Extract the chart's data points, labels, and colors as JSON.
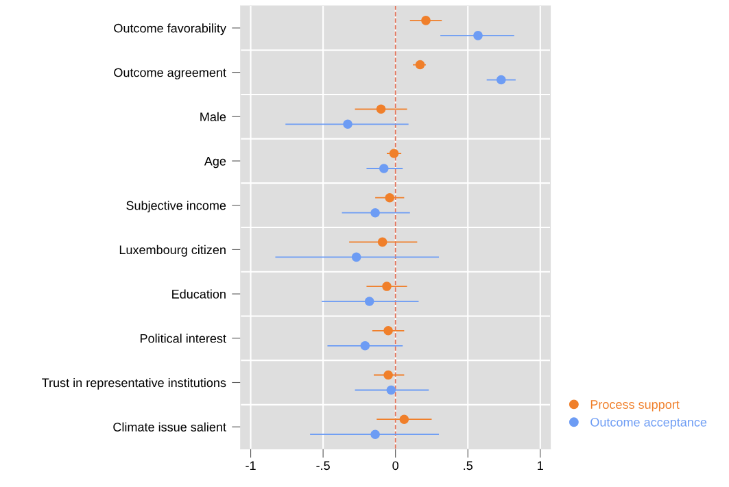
{
  "chart_data": {
    "type": "scatter",
    "orientation": "horizontal",
    "categories": [
      "Outcome favorability",
      "Outcome agreement",
      "Male",
      "Age",
      "Subjective income",
      "Luxembourg citizen",
      "Education",
      "Political interest",
      "Trust in representative institutions",
      "Climate issue salient"
    ],
    "series": [
      {
        "name": "Process support",
        "color": "#f07f2a",
        "values": [
          0.21,
          0.17,
          -0.1,
          -0.01,
          -0.04,
          -0.09,
          -0.06,
          -0.05,
          -0.05,
          0.06
        ],
        "errors": [
          [
            0.1,
            0.32
          ],
          [
            0.12,
            0.21
          ],
          [
            -0.28,
            0.08
          ],
          [
            -0.06,
            0.04
          ],
          [
            -0.14,
            0.06
          ],
          [
            -0.32,
            0.15
          ],
          [
            -0.2,
            0.08
          ],
          [
            -0.16,
            0.06
          ],
          [
            -0.15,
            0.06
          ],
          [
            -0.13,
            0.25
          ]
        ]
      },
      {
        "name": "Outcome acceptance",
        "color": "#6d9cf4",
        "values": [
          0.57,
          0.73,
          -0.33,
          -0.08,
          -0.14,
          -0.27,
          -0.18,
          -0.21,
          -0.03,
          -0.14
        ],
        "errors": [
          [
            0.31,
            0.82
          ],
          [
            0.63,
            0.83
          ],
          [
            -0.76,
            0.09
          ],
          [
            -0.2,
            0.05
          ],
          [
            -0.37,
            0.1
          ],
          [
            -0.83,
            0.3
          ],
          [
            -0.51,
            0.16
          ],
          [
            -0.47,
            0.05
          ],
          [
            -0.28,
            0.23
          ],
          [
            -0.59,
            0.3
          ]
        ]
      }
    ],
    "xlim": [
      -1.07,
      1.07
    ],
    "xticks": [
      {
        "value": -1,
        "label": "-1"
      },
      {
        "value": -0.5,
        "label": "-.5"
      },
      {
        "value": 0,
        "label": "0"
      },
      {
        "value": 0.5,
        "label": ".5"
      },
      {
        "value": 1,
        "label": "1"
      }
    ],
    "ref_lines": [
      {
        "axis": "x",
        "value": 0,
        "color": "#e0735a",
        "line_style": "dashed"
      }
    ],
    "grid": true,
    "legend": "bottom right",
    "marker": "circle"
  }
}
